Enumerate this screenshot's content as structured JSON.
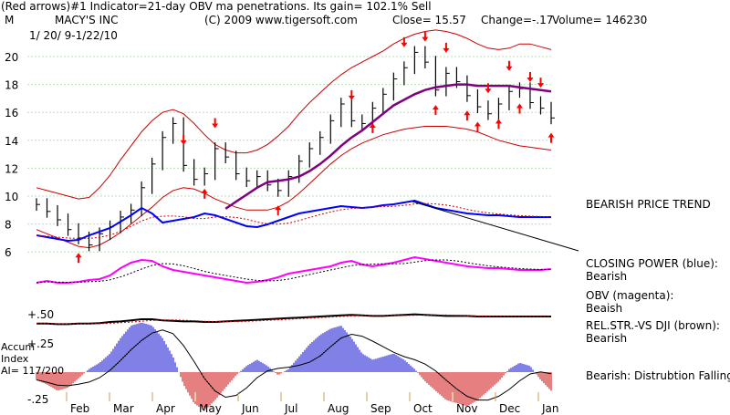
{
  "header": {
    "line1": "(Red arrows)#1 Indicator=21-day OBV ma penetrations. Its gain= 102.1% Sell",
    "ticker_label": "MACY'S INC",
    "copyright": "(C) 2009 www.tigersoft.com",
    "close_text": "Close=   15.57",
    "change_text": "Change=-.17",
    "volume_text": "Volume= 146230",
    "period_code": "M",
    "date_range": "1/ 20/ 9-1/22/10"
  },
  "annotations": {
    "price_trend": "BEARISH PRICE TREND",
    "cp_title": "CLOSING POWER (blue):",
    "cp_status": "Bearish",
    "obv_title": "OBV (magenta):",
    "obv_status": "Beaish",
    "rel_title": "REL.STR.-VS DJI (brown):",
    "rel_status": "Bearish",
    "accum_note": "Bearish:  Distrubtion Falling.",
    "accum_label1": "Accum",
    "accum_label2": "Index",
    "accum_label3": "AI= 117/200",
    "level_plus50": "+.50",
    "level_plus25": "+.25",
    "level_minus25": "-.25"
  },
  "colors": {
    "price_bar": "#000000",
    "band": "#cc0000",
    "ma": "#800080",
    "closing_power": "#0000ff",
    "obv": "#ff00ff",
    "rel_strength": "#000000",
    "accum_pos": "#0000cc",
    "accum_neg": "#cc0000",
    "grid": "#b8e0b8",
    "arrow": "#ff0000"
  },
  "chart_data": {
    "type": "line",
    "price_axis": {
      "ticks": [
        6,
        8,
        10,
        12,
        14,
        16,
        18,
        20
      ],
      "ylim": [
        5,
        21
      ]
    },
    "months": [
      "Feb",
      "Mar",
      "Apr",
      "May",
      "Jun",
      "Jul",
      "Aug",
      "Sep",
      "Oct",
      "Nov",
      "Dec",
      "Jan"
    ],
    "price_close_weekly": [
      9.4,
      8.9,
      8.3,
      7.6,
      7.0,
      6.5,
      7.3,
      7.8,
      8.5,
      9.0,
      10.6,
      12.3,
      14.2,
      15.2,
      12.2,
      11.2,
      11.6,
      13.4,
      12.8,
      11.6,
      11.1,
      11.4,
      10.8,
      10.4,
      11.4,
      12.5,
      13.4,
      14.2,
      15.4,
      16.6,
      15.4,
      15.2,
      16.3,
      17.3,
      18.4,
      19.2,
      20.3,
      19.6,
      17.6,
      18.8,
      18.2,
      17.2,
      16.4,
      15.9,
      16.6,
      17.5,
      17.7,
      16.7,
      16.3,
      15.6
    ],
    "upper_band_weekly": [
      10.6,
      10.4,
      10.2,
      10.0,
      9.8,
      9.9,
      10.6,
      11.5,
      12.6,
      13.6,
      14.6,
      15.4,
      16.0,
      16.2,
      15.9,
      15.2,
      14.4,
      13.7,
      13.3,
      13.1,
      13.1,
      13.3,
      13.7,
      14.3,
      15.0,
      15.9,
      16.7,
      17.4,
      18.1,
      18.7,
      19.2,
      19.6,
      20.0,
      20.4,
      20.9,
      21.3,
      21.6,
      21.8,
      21.9,
      21.8,
      21.6,
      21.3,
      20.9,
      20.6,
      20.5,
      20.6,
      20.9,
      20.9,
      20.7,
      20.5
    ],
    "lower_band_weekly": [
      7.6,
      7.3,
      7.0,
      6.7,
      6.4,
      6.3,
      6.5,
      6.9,
      7.4,
      8.0,
      8.6,
      9.2,
      9.9,
      10.4,
      10.6,
      10.5,
      10.2,
      9.8,
      9.5,
      9.2,
      9.0,
      9.0,
      9.0,
      9.2,
      9.6,
      10.2,
      10.9,
      11.6,
      12.3,
      12.9,
      13.4,
      13.8,
      14.1,
      14.4,
      14.6,
      14.8,
      14.9,
      15.0,
      15.0,
      15.0,
      14.9,
      14.8,
      14.6,
      14.3,
      14.0,
      13.8,
      13.6,
      13.5,
      13.4,
      13.3
    ],
    "ma_weekly": [
      null,
      null,
      null,
      null,
      null,
      null,
      null,
      null,
      null,
      null,
      null,
      null,
      null,
      null,
      null,
      null,
      null,
      null,
      9.1,
      9.6,
      10.1,
      10.6,
      11.0,
      11.1,
      11.2,
      11.4,
      11.8,
      12.3,
      12.9,
      13.6,
      14.2,
      14.7,
      15.3,
      15.9,
      16.5,
      16.9,
      17.3,
      17.6,
      17.8,
      17.9,
      18.0,
      18.0,
      17.9,
      17.9,
      17.9,
      17.9,
      17.8,
      17.7,
      17.6,
      17.5
    ],
    "closing_power_weekly": [
      0.62,
      0.6,
      0.58,
      0.56,
      0.57,
      0.62,
      0.66,
      0.7,
      0.77,
      0.84,
      0.92,
      0.86,
      0.76,
      0.78,
      0.8,
      0.82,
      0.86,
      0.84,
      0.8,
      0.76,
      0.72,
      0.71,
      0.74,
      0.78,
      0.82,
      0.86,
      0.88,
      0.9,
      0.92,
      0.94,
      0.93,
      0.92,
      0.93,
      0.95,
      0.96,
      0.98,
      1.0,
      0.96,
      0.92,
      0.9,
      0.88,
      0.86,
      0.85,
      0.84,
      0.84,
      0.83,
      0.82,
      0.82,
      0.82,
      0.82
    ],
    "obv_weekly": [
      0.3,
      0.32,
      0.3,
      0.3,
      0.31,
      0.33,
      0.34,
      0.38,
      0.46,
      0.52,
      0.55,
      0.54,
      0.48,
      0.44,
      0.42,
      0.4,
      0.38,
      0.36,
      0.34,
      0.32,
      0.3,
      0.31,
      0.33,
      0.36,
      0.4,
      0.42,
      0.44,
      0.46,
      0.48,
      0.52,
      0.54,
      0.5,
      0.48,
      0.5,
      0.52,
      0.55,
      0.58,
      0.56,
      0.54,
      0.52,
      0.5,
      0.48,
      0.47,
      0.46,
      0.46,
      0.45,
      0.44,
      0.44,
      0.44,
      0.45
    ],
    "rel_strength_weekly": [
      0.42,
      0.42,
      0.41,
      0.41,
      0.42,
      0.42,
      0.43,
      0.45,
      0.46,
      0.48,
      0.5,
      0.5,
      0.48,
      0.47,
      0.46,
      0.46,
      0.45,
      0.45,
      0.46,
      0.47,
      0.48,
      0.49,
      0.5,
      0.51,
      0.52,
      0.53,
      0.54,
      0.55,
      0.56,
      0.57,
      0.58,
      0.57,
      0.56,
      0.56,
      0.57,
      0.58,
      0.59,
      0.58,
      0.57,
      0.56,
      0.56,
      0.56,
      0.55,
      0.55,
      0.55,
      0.55,
      0.55,
      0.55,
      0.55,
      0.55
    ],
    "accum_index_weekly": [
      -0.05,
      -0.08,
      -0.12,
      -0.1,
      -0.04,
      0.02,
      0.06,
      0.12,
      0.22,
      0.3,
      0.32,
      0.3,
      0.22,
      0.1,
      -0.08,
      -0.2,
      -0.25,
      -0.18,
      -0.1,
      -0.02,
      0.04,
      0.08,
      0.04,
      -0.02,
      0.02,
      0.1,
      0.18,
      0.24,
      0.28,
      0.3,
      0.22,
      0.12,
      0.08,
      0.1,
      0.12,
      0.08,
      0.02,
      -0.06,
      -0.12,
      -0.18,
      -0.2,
      -0.22,
      -0.18,
      -0.12,
      -0.06,
      0.02,
      0.06,
      0.04,
      -0.05,
      -0.12
    ],
    "sell_arrow_weeks": [
      14,
      17,
      30,
      35,
      37,
      39,
      43,
      45,
      47,
      48
    ],
    "buy_arrow_weeks": [
      4,
      16,
      23,
      32,
      38,
      41,
      42,
      44,
      46,
      49
    ]
  }
}
